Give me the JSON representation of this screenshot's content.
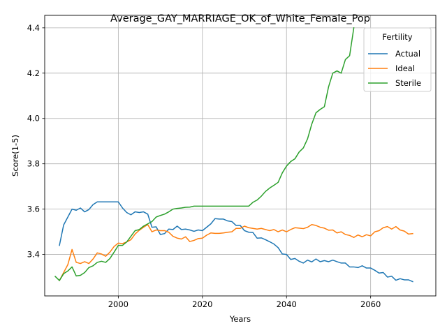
{
  "chart_data": {
    "type": "line",
    "title": "Average_GAY_MARRIAGE_OK_of_White_Female_Pop",
    "xlabel": "Years",
    "ylabel": "Score(1-5)",
    "xlim": [
      1982.5,
      2075.5
    ],
    "ylim": [
      3.217,
      4.455
    ],
    "xticks": [
      2000,
      2020,
      2040,
      2060
    ],
    "yticks": [
      3.4,
      3.6,
      3.8,
      4.0,
      4.2,
      4.4
    ],
    "grid": true,
    "legend": {
      "title": "Fertility",
      "placement": "top-right"
    },
    "series": [
      {
        "name": "Actual",
        "color": "#1f77b4",
        "x": [
          1986,
          1987,
          1988,
          1989,
          1990,
          1991,
          1992,
          1993,
          1994,
          1995,
          1996,
          1997,
          1998,
          1999,
          2000,
          2001,
          2002,
          2003,
          2004,
          2005,
          2006,
          2007,
          2008,
          2009,
          2010,
          2011,
          2012,
          2013,
          2014,
          2015,
          2016,
          2017,
          2018,
          2019,
          2020,
          2021,
          2022,
          2023,
          2024,
          2025,
          2026,
          2027,
          2028,
          2029,
          2030,
          2031,
          2032,
          2033,
          2034,
          2035,
          2036,
          2037,
          2038,
          2039,
          2040,
          2041,
          2042,
          2043,
          2044,
          2045,
          2046,
          2047,
          2048,
          2049,
          2050,
          2051,
          2052,
          2053,
          2054,
          2055,
          2056,
          2057,
          2058,
          2059,
          2060,
          2061,
          2062,
          2063,
          2064,
          2065,
          2066,
          2067,
          2068,
          2069,
          2070
        ],
        "values": [
          3.44,
          3.53,
          3.565,
          3.6,
          3.595,
          3.605,
          3.588,
          3.598,
          3.62,
          3.632,
          3.632,
          3.632,
          3.632,
          3.632,
          3.632,
          3.605,
          3.585,
          3.575,
          3.588,
          3.585,
          3.588,
          3.578,
          3.52,
          3.522,
          3.488,
          3.492,
          3.512,
          3.51,
          3.525,
          3.51,
          3.512,
          3.508,
          3.502,
          3.508,
          3.505,
          3.52,
          3.535,
          3.558,
          3.556,
          3.556,
          3.548,
          3.545,
          3.528,
          3.528,
          3.505,
          3.498,
          3.497,
          3.472,
          3.473,
          3.465,
          3.456,
          3.446,
          3.43,
          3.402,
          3.4,
          3.378,
          3.382,
          3.37,
          3.362,
          3.375,
          3.367,
          3.38,
          3.368,
          3.373,
          3.368,
          3.375,
          3.368,
          3.362,
          3.362,
          3.345,
          3.345,
          3.342,
          3.35,
          3.34,
          3.34,
          3.33,
          3.318,
          3.32,
          3.3,
          3.304,
          3.286,
          3.293,
          3.288,
          3.288,
          3.28
        ]
      },
      {
        "name": "Ideal",
        "color": "#ff7f0e",
        "x": [
          1986,
          1987,
          1988,
          1989,
          1990,
          1991,
          1992,
          1993,
          1994,
          1995,
          1996,
          1997,
          1998,
          1999,
          2000,
          2001,
          2002,
          2003,
          2004,
          2005,
          2006,
          2007,
          2008,
          2009,
          2010,
          2011,
          2012,
          2013,
          2014,
          2015,
          2016,
          2017,
          2018,
          2019,
          2020,
          2021,
          2022,
          2023,
          2024,
          2025,
          2026,
          2027,
          2028,
          2029,
          2030,
          2031,
          2032,
          2033,
          2034,
          2035,
          2036,
          2037,
          2038,
          2039,
          2040,
          2041,
          2042,
          2043,
          2044,
          2045,
          2046,
          2047,
          2048,
          2049,
          2050,
          2051,
          2052,
          2053,
          2054,
          2055,
          2056,
          2057,
          2058,
          2059,
          2060,
          2061,
          2062,
          2063,
          2064,
          2065,
          2066,
          2067,
          2068,
          2069,
          2070
        ],
        "values": [
          3.285,
          3.32,
          3.355,
          3.422,
          3.365,
          3.36,
          3.368,
          3.36,
          3.38,
          3.407,
          3.402,
          3.392,
          3.41,
          3.435,
          3.45,
          3.448,
          3.455,
          3.465,
          3.49,
          3.507,
          3.52,
          3.532,
          3.5,
          3.508,
          3.505,
          3.505,
          3.498,
          3.48,
          3.472,
          3.468,
          3.478,
          3.457,
          3.462,
          3.47,
          3.472,
          3.485,
          3.495,
          3.493,
          3.493,
          3.495,
          3.498,
          3.5,
          3.515,
          3.515,
          3.525,
          3.518,
          3.515,
          3.512,
          3.515,
          3.51,
          3.505,
          3.51,
          3.5,
          3.508,
          3.5,
          3.51,
          3.518,
          3.516,
          3.514,
          3.52,
          3.532,
          3.528,
          3.52,
          3.516,
          3.507,
          3.508,
          3.495,
          3.5,
          3.488,
          3.484,
          3.475,
          3.486,
          3.478,
          3.487,
          3.482,
          3.5,
          3.505,
          3.518,
          3.523,
          3.512,
          3.523,
          3.508,
          3.503,
          3.49,
          3.492
        ]
      },
      {
        "name": "Sterile",
        "color": "#2ca02c",
        "x": [
          1985,
          1986,
          1987,
          1988,
          1989,
          1990,
          1991,
          1992,
          1993,
          1994,
          1995,
          1996,
          1997,
          1998,
          1999,
          2000,
          2001,
          2002,
          2003,
          2004,
          2005,
          2006,
          2007,
          2008,
          2009,
          2010,
          2011,
          2012,
          2013,
          2014,
          2015,
          2016,
          2017,
          2018,
          2019,
          2020,
          2021,
          2022,
          2023,
          2024,
          2025,
          2026,
          2027,
          2028,
          2029,
          2030,
          2031,
          2032,
          2033,
          2034,
          2035,
          2036,
          2037,
          2038,
          2039,
          2040,
          2041,
          2042,
          2043,
          2044,
          2045,
          2046,
          2047,
          2048,
          2049,
          2050,
          2051,
          2052,
          2053,
          2054,
          2055,
          2056
        ],
        "values": [
          3.303,
          3.285,
          3.315,
          3.327,
          3.345,
          3.305,
          3.308,
          3.32,
          3.342,
          3.35,
          3.365,
          3.37,
          3.365,
          3.382,
          3.41,
          3.44,
          3.44,
          3.455,
          3.48,
          3.505,
          3.51,
          3.525,
          3.535,
          3.545,
          3.565,
          3.572,
          3.578,
          3.588,
          3.6,
          3.603,
          3.605,
          3.608,
          3.609,
          3.613,
          3.613,
          3.613,
          3.613,
          3.613,
          3.613,
          3.613,
          3.613,
          3.613,
          3.613,
          3.613,
          3.613,
          3.613,
          3.613,
          3.63,
          3.64,
          3.657,
          3.678,
          3.693,
          3.705,
          3.718,
          3.76,
          3.79,
          3.81,
          3.822,
          3.852,
          3.87,
          3.91,
          3.975,
          4.025,
          4.04,
          4.052,
          4.14,
          4.2,
          4.21,
          4.2,
          4.26,
          4.277,
          4.4
        ]
      }
    ]
  }
}
